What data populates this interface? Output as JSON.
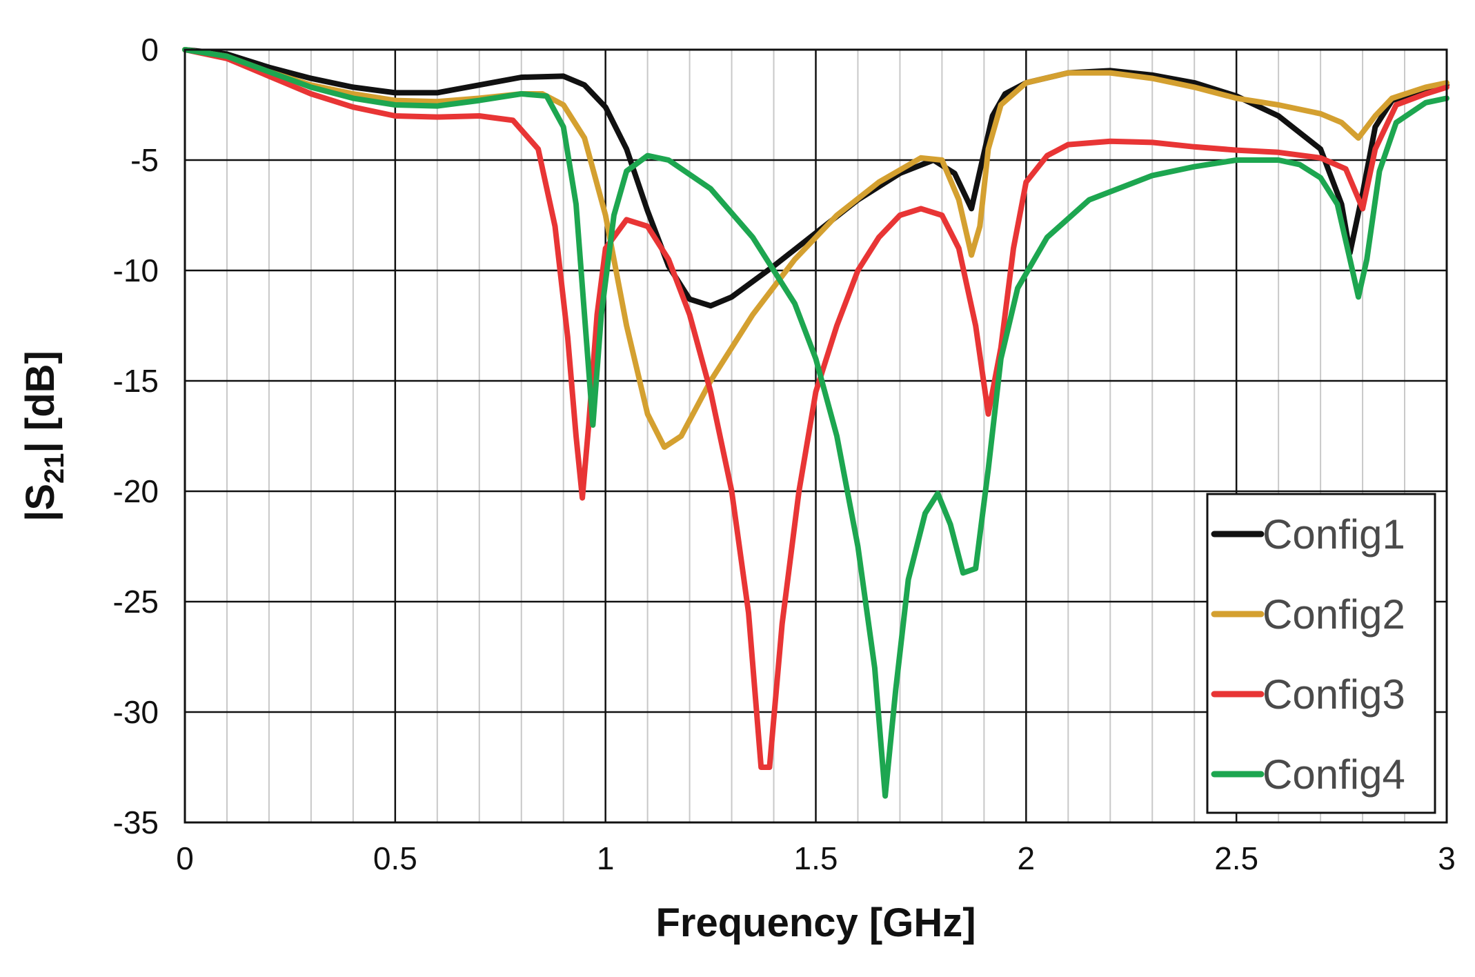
{
  "chart_data": {
    "type": "line",
    "title": "",
    "xlabel": "Frequency [GHz]",
    "ylabel": {
      "prefix": "|S",
      "subscript": "21",
      "suffix": "| [dB]"
    },
    "xlim": [
      0,
      3
    ],
    "ylim": [
      -35,
      0
    ],
    "xticks": [
      0,
      0.5,
      1,
      1.5,
      2,
      2.5,
      3
    ],
    "xtick_labels": [
      "0",
      "0.5",
      "1",
      "1.5",
      "2",
      "2.5",
      "3"
    ],
    "yticks": [
      0,
      -5,
      -10,
      -15,
      -20,
      -25,
      -30,
      -35
    ],
    "ytick_labels": [
      "0",
      "-5",
      "-10",
      "-15",
      "-20",
      "-25",
      "-30",
      "-35"
    ],
    "grid": {
      "major": true,
      "minor_x": true
    },
    "legend": "bottom-right",
    "series": [
      {
        "name": "Config1",
        "color": "#111111",
        "points": [
          [
            0,
            0
          ],
          [
            0.1,
            -0.2
          ],
          [
            0.2,
            -0.8
          ],
          [
            0.3,
            -1.3
          ],
          [
            0.4,
            -1.7
          ],
          [
            0.5,
            -1.95
          ],
          [
            0.6,
            -1.95
          ],
          [
            0.7,
            -1.6
          ],
          [
            0.8,
            -1.25
          ],
          [
            0.9,
            -1.2
          ],
          [
            0.95,
            -1.6
          ],
          [
            1.0,
            -2.6
          ],
          [
            1.05,
            -4.5
          ],
          [
            1.1,
            -7.3
          ],
          [
            1.15,
            -9.8
          ],
          [
            1.2,
            -11.3
          ],
          [
            1.25,
            -11.6
          ],
          [
            1.3,
            -11.2
          ],
          [
            1.4,
            -9.8
          ],
          [
            1.5,
            -8.3
          ],
          [
            1.6,
            -6.8
          ],
          [
            1.7,
            -5.6
          ],
          [
            1.78,
            -5.0
          ],
          [
            1.83,
            -5.6
          ],
          [
            1.87,
            -7.2
          ],
          [
            1.89,
            -5.5
          ],
          [
            1.92,
            -3.0
          ],
          [
            1.95,
            -2.0
          ],
          [
            2.0,
            -1.5
          ],
          [
            2.1,
            -1.05
          ],
          [
            2.2,
            -0.95
          ],
          [
            2.3,
            -1.15
          ],
          [
            2.4,
            -1.5
          ],
          [
            2.5,
            -2.1
          ],
          [
            2.6,
            -3.0
          ],
          [
            2.7,
            -4.5
          ],
          [
            2.75,
            -7.0
          ],
          [
            2.77,
            -9.2
          ],
          [
            2.8,
            -6.5
          ],
          [
            2.83,
            -3.5
          ],
          [
            2.87,
            -2.3
          ],
          [
            2.95,
            -1.8
          ],
          [
            3.0,
            -1.6
          ]
        ]
      },
      {
        "name": "Config2",
        "color": "#D4A030",
        "points": [
          [
            0,
            0
          ],
          [
            0.1,
            -0.3
          ],
          [
            0.2,
            -1.0
          ],
          [
            0.3,
            -1.6
          ],
          [
            0.4,
            -2.0
          ],
          [
            0.5,
            -2.3
          ],
          [
            0.6,
            -2.35
          ],
          [
            0.7,
            -2.2
          ],
          [
            0.8,
            -2.0
          ],
          [
            0.85,
            -2.0
          ],
          [
            0.9,
            -2.5
          ],
          [
            0.95,
            -4.0
          ],
          [
            1.0,
            -7.5
          ],
          [
            1.05,
            -12.5
          ],
          [
            1.1,
            -16.5
          ],
          [
            1.14,
            -18.0
          ],
          [
            1.18,
            -17.5
          ],
          [
            1.25,
            -15.0
          ],
          [
            1.35,
            -12.0
          ],
          [
            1.45,
            -9.5
          ],
          [
            1.55,
            -7.5
          ],
          [
            1.65,
            -6.0
          ],
          [
            1.75,
            -4.9
          ],
          [
            1.8,
            -5.0
          ],
          [
            1.84,
            -6.8
          ],
          [
            1.87,
            -9.3
          ],
          [
            1.89,
            -8.0
          ],
          [
            1.91,
            -4.5
          ],
          [
            1.94,
            -2.5
          ],
          [
            2.0,
            -1.5
          ],
          [
            2.1,
            -1.05
          ],
          [
            2.2,
            -1.05
          ],
          [
            2.3,
            -1.3
          ],
          [
            2.4,
            -1.7
          ],
          [
            2.5,
            -2.2
          ],
          [
            2.6,
            -2.5
          ],
          [
            2.7,
            -2.9
          ],
          [
            2.75,
            -3.3
          ],
          [
            2.79,
            -4.0
          ],
          [
            2.83,
            -3.0
          ],
          [
            2.87,
            -2.2
          ],
          [
            2.95,
            -1.7
          ],
          [
            3.0,
            -1.5
          ]
        ]
      },
      {
        "name": "Config3",
        "color": "#E83535",
        "points": [
          [
            0,
            0
          ],
          [
            0.1,
            -0.4
          ],
          [
            0.2,
            -1.2
          ],
          [
            0.3,
            -2.0
          ],
          [
            0.4,
            -2.6
          ],
          [
            0.5,
            -3.0
          ],
          [
            0.6,
            -3.05
          ],
          [
            0.7,
            -3.0
          ],
          [
            0.78,
            -3.2
          ],
          [
            0.84,
            -4.5
          ],
          [
            0.88,
            -8.0
          ],
          [
            0.91,
            -13.0
          ],
          [
            0.93,
            -17.5
          ],
          [
            0.945,
            -20.3
          ],
          [
            0.96,
            -17.0
          ],
          [
            0.98,
            -12.0
          ],
          [
            1.0,
            -9.0
          ],
          [
            1.05,
            -7.7
          ],
          [
            1.1,
            -8.0
          ],
          [
            1.15,
            -9.5
          ],
          [
            1.2,
            -12.0
          ],
          [
            1.25,
            -15.5
          ],
          [
            1.3,
            -20.0
          ],
          [
            1.34,
            -25.5
          ],
          [
            1.37,
            -32.5
          ],
          [
            1.39,
            -32.5
          ],
          [
            1.42,
            -26.0
          ],
          [
            1.46,
            -20.0
          ],
          [
            1.5,
            -15.5
          ],
          [
            1.55,
            -12.5
          ],
          [
            1.6,
            -10.0
          ],
          [
            1.65,
            -8.5
          ],
          [
            1.7,
            -7.5
          ],
          [
            1.75,
            -7.2
          ],
          [
            1.8,
            -7.5
          ],
          [
            1.84,
            -9.0
          ],
          [
            1.88,
            -12.5
          ],
          [
            1.91,
            -16.5
          ],
          [
            1.94,
            -13.5
          ],
          [
            1.97,
            -9.0
          ],
          [
            2.0,
            -6.0
          ],
          [
            2.05,
            -4.8
          ],
          [
            2.1,
            -4.3
          ],
          [
            2.2,
            -4.15
          ],
          [
            2.3,
            -4.2
          ],
          [
            2.4,
            -4.4
          ],
          [
            2.5,
            -4.55
          ],
          [
            2.6,
            -4.65
          ],
          [
            2.7,
            -4.9
          ],
          [
            2.76,
            -5.4
          ],
          [
            2.8,
            -7.2
          ],
          [
            2.83,
            -4.5
          ],
          [
            2.88,
            -2.5
          ],
          [
            2.95,
            -2.0
          ],
          [
            3.0,
            -1.7
          ]
        ]
      },
      {
        "name": "Config4",
        "color": "#1DA650",
        "points": [
          [
            0,
            0
          ],
          [
            0.1,
            -0.3
          ],
          [
            0.2,
            -1.0
          ],
          [
            0.3,
            -1.7
          ],
          [
            0.4,
            -2.2
          ],
          [
            0.5,
            -2.5
          ],
          [
            0.6,
            -2.55
          ],
          [
            0.7,
            -2.3
          ],
          [
            0.8,
            -2.0
          ],
          [
            0.86,
            -2.1
          ],
          [
            0.9,
            -3.5
          ],
          [
            0.93,
            -7.0
          ],
          [
            0.95,
            -12.0
          ],
          [
            0.97,
            -17.0
          ],
          [
            0.99,
            -12.0
          ],
          [
            1.02,
            -7.5
          ],
          [
            1.05,
            -5.5
          ],
          [
            1.1,
            -4.8
          ],
          [
            1.15,
            -5.0
          ],
          [
            1.25,
            -6.3
          ],
          [
            1.35,
            -8.5
          ],
          [
            1.45,
            -11.5
          ],
          [
            1.5,
            -14.0
          ],
          [
            1.55,
            -17.5
          ],
          [
            1.6,
            -22.5
          ],
          [
            1.64,
            -28.0
          ],
          [
            1.665,
            -33.8
          ],
          [
            1.69,
            -29.0
          ],
          [
            1.72,
            -24.0
          ],
          [
            1.76,
            -21.0
          ],
          [
            1.79,
            -20.1
          ],
          [
            1.82,
            -21.5
          ],
          [
            1.85,
            -23.7
          ],
          [
            1.88,
            -23.5
          ],
          [
            1.91,
            -19.0
          ],
          [
            1.94,
            -14.0
          ],
          [
            1.98,
            -10.8
          ],
          [
            2.05,
            -8.5
          ],
          [
            2.15,
            -6.8
          ],
          [
            2.3,
            -5.7
          ],
          [
            2.4,
            -5.3
          ],
          [
            2.5,
            -5.0
          ],
          [
            2.6,
            -5.0
          ],
          [
            2.65,
            -5.2
          ],
          [
            2.7,
            -5.8
          ],
          [
            2.74,
            -7.0
          ],
          [
            2.77,
            -9.5
          ],
          [
            2.79,
            -11.2
          ],
          [
            2.81,
            -9.5
          ],
          [
            2.84,
            -5.5
          ],
          [
            2.88,
            -3.3
          ],
          [
            2.95,
            -2.4
          ],
          [
            3.0,
            -2.2
          ]
        ]
      }
    ]
  }
}
